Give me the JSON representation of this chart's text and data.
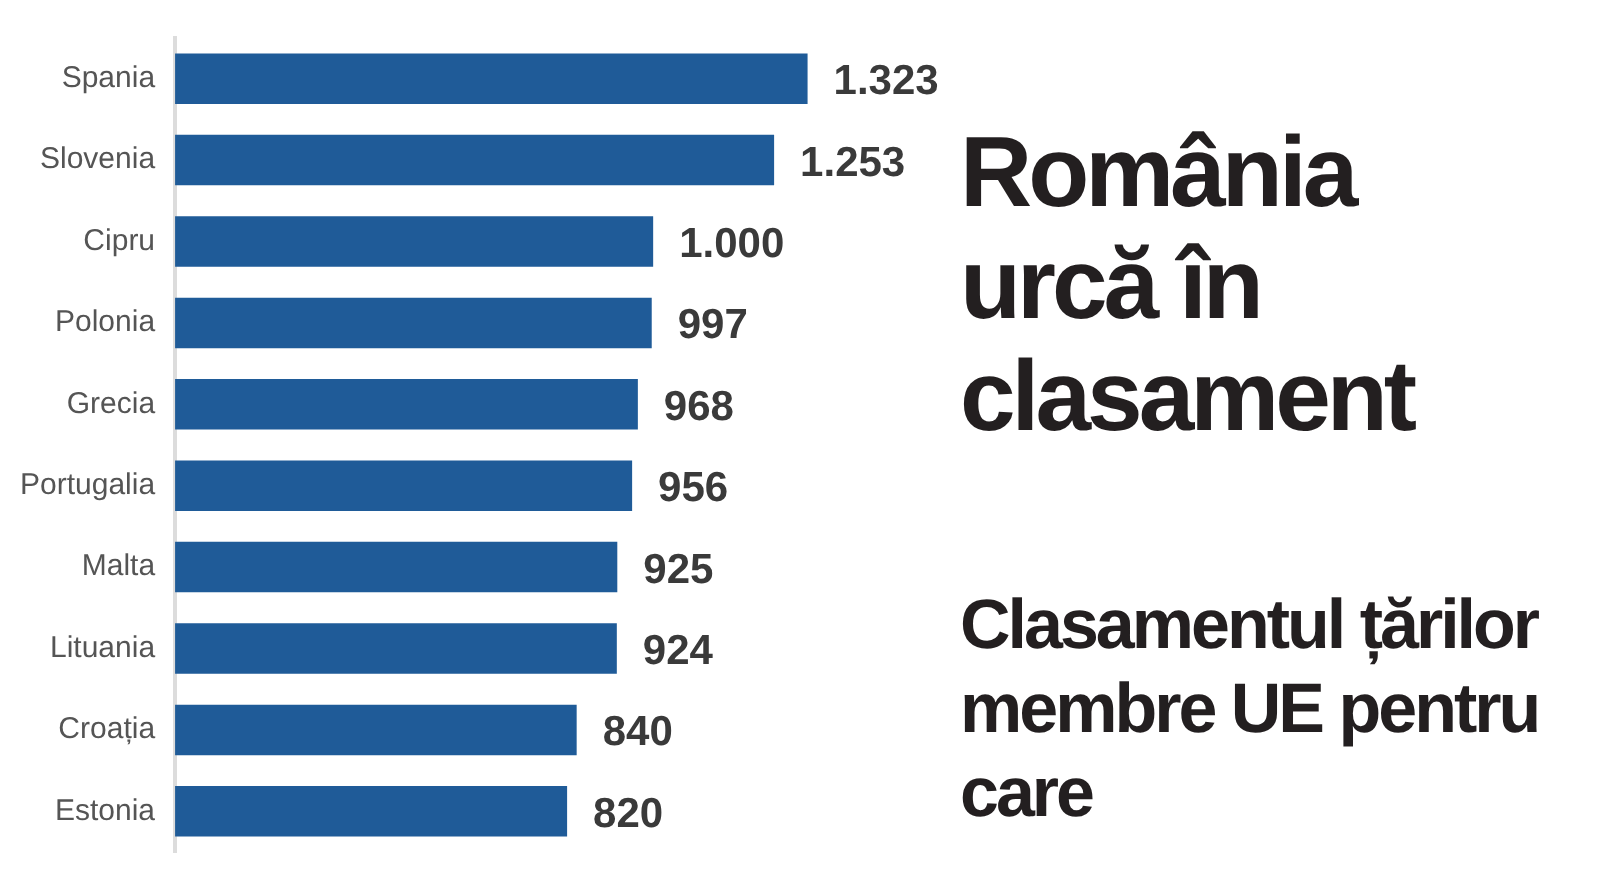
{
  "chart_data": {
    "type": "bar",
    "orientation": "horizontal",
    "title": "România urcă în clasament",
    "subtitle": "Clasamentul țărilor membre UE pentru care",
    "categories": [
      "Spania",
      "Slovenia",
      "Cipru",
      "Polonia",
      "Grecia",
      "Portugalia",
      "Malta",
      "Lituania",
      "Croația",
      "Estonia"
    ],
    "values": [
      1323,
      1253,
      1000,
      997,
      968,
      956,
      925,
      924,
      840,
      820
    ],
    "value_labels": [
      "1.323",
      "1.253",
      "1.000",
      "997",
      "968",
      "956",
      "925",
      "924",
      "840",
      "820"
    ],
    "color": "#1f5b98",
    "legend": false
  }
}
